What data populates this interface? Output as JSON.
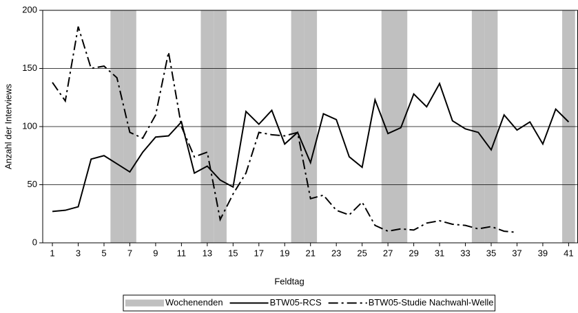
{
  "chart_data": {
    "type": "line",
    "x_label": "Feldtag",
    "y_label": "Anzahl der Interviews",
    "x": [
      1,
      2,
      3,
      4,
      5,
      6,
      7,
      8,
      9,
      10,
      11,
      12,
      13,
      14,
      15,
      16,
      17,
      18,
      19,
      20,
      21,
      22,
      23,
      24,
      25,
      26,
      27,
      28,
      29,
      30,
      31,
      32,
      33,
      34,
      35,
      36,
      37,
      38,
      39,
      40,
      41
    ],
    "xlim": [
      0.25,
      41.7
    ],
    "xticks": [
      1,
      3,
      5,
      7,
      9,
      11,
      13,
      15,
      17,
      19,
      21,
      23,
      25,
      27,
      29,
      31,
      33,
      35,
      37,
      39,
      41
    ],
    "ylim": [
      0,
      200
    ],
    "yticks": [
      0,
      50,
      100,
      150,
      200
    ],
    "grid": true,
    "bands": {
      "name": "Wochenenden",
      "color": "#c0c0c0",
      "days": [
        6,
        7,
        13,
        14,
        20,
        21,
        27,
        28,
        34,
        35,
        41
      ]
    },
    "series": [
      {
        "name": "BTW05-RCS",
        "color": "#000000",
        "line_style": "solid",
        "values": [
          27,
          28,
          31,
          72,
          75,
          68,
          61,
          78,
          91,
          92,
          104,
          60,
          66,
          54,
          48,
          113,
          102,
          114,
          85,
          95,
          69,
          111,
          106,
          74,
          65,
          123,
          94,
          99,
          128,
          117,
          137,
          105,
          98,
          95,
          80,
          110,
          97,
          104,
          85,
          115,
          104
        ]
      },
      {
        "name": "BTW05-Studie Nachwahl-Welle",
        "color": "#000000",
        "line_style": "dashdot",
        "values": [
          138,
          122,
          186,
          150,
          152,
          142,
          95,
          90,
          110,
          164,
          100,
          74,
          78,
          20,
          42,
          60,
          95,
          93,
          92,
          95,
          38,
          41,
          28,
          24,
          35,
          15,
          10,
          12,
          11,
          17,
          19,
          16,
          15,
          12,
          14,
          10,
          9,
          null,
          null,
          null,
          null
        ]
      }
    ],
    "legend": "bottom"
  }
}
